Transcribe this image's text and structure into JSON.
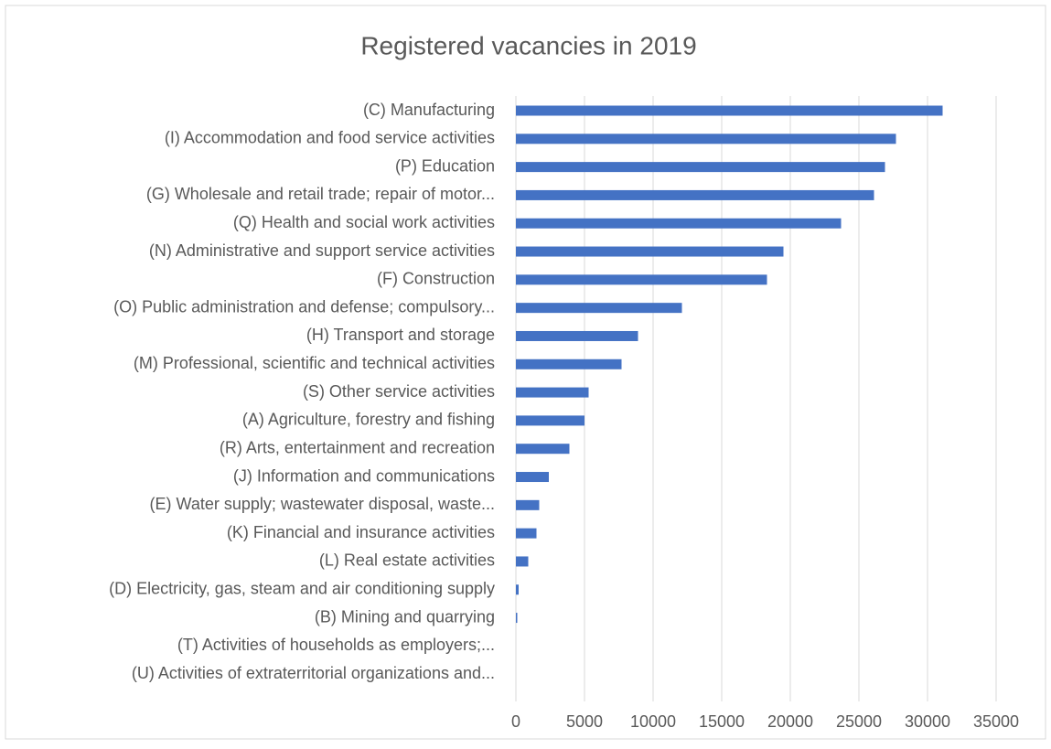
{
  "chart_data": {
    "type": "bar",
    "orientation": "horizontal",
    "title": "Registered vacancies in 2019",
    "categories": [
      "(C) Manufacturing",
      "(I) Accommodation and food service activities",
      "(P) Education",
      "(G) Wholesale and retail trade; repair of motor...",
      "(Q) Health and social work activities",
      "(N) Administrative and support service activities",
      "(F) Construction",
      "(O) Public administration and defense; compulsory...",
      "(H) Transport and storage",
      "(M) Professional, scientific and technical activities",
      "(S) Other service activities",
      "(A) Agriculture, forestry and fishing",
      "(R) Arts, entertainment and recreation",
      "(J) Information and communications",
      "(E) Water supply; wastewater disposal, waste...",
      "(K) Financial and insurance activities",
      "(L) Real estate activities",
      "(D) Electricity, gas, steam and air conditioning supply",
      "(B) Mining and quarrying",
      "(T) Activities of households as employers;...",
      "(U) Activities of extraterritorial organizations and..."
    ],
    "values": [
      31100,
      27700,
      26900,
      26100,
      23700,
      19500,
      18300,
      12100,
      8900,
      7700,
      5300,
      5000,
      3900,
      2400,
      1700,
      1500,
      900,
      200,
      100,
      0,
      0
    ],
    "color": "#4472c4",
    "xlim": [
      0,
      35000
    ],
    "xticks": [
      0,
      5000,
      10000,
      15000,
      20000,
      25000,
      30000,
      35000
    ],
    "grid": true
  }
}
